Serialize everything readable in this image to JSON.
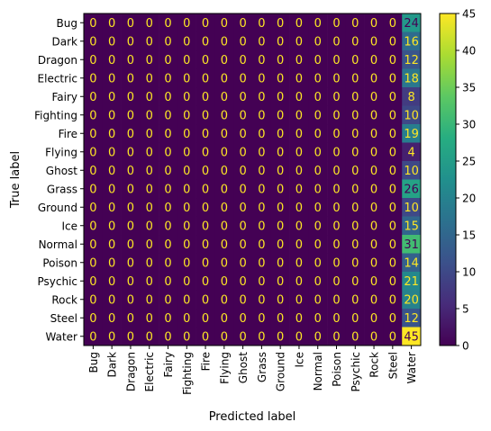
{
  "chart_data": {
    "type": "heatmap",
    "title": "",
    "xlabel": "Predicted label",
    "ylabel": "True label",
    "x_categories": [
      "Bug",
      "Dark",
      "Dragon",
      "Electric",
      "Fairy",
      "Fighting",
      "Fire",
      "Flying",
      "Ghost",
      "Grass",
      "Ground",
      "Ice",
      "Normal",
      "Poison",
      "Psychic",
      "Rock",
      "Steel",
      "Water"
    ],
    "y_categories": [
      "Bug",
      "Dark",
      "Dragon",
      "Electric",
      "Fairy",
      "Fighting",
      "Fire",
      "Flying",
      "Ghost",
      "Grass",
      "Ground",
      "Ice",
      "Normal",
      "Poison",
      "Psychic",
      "Rock",
      "Steel",
      "Water"
    ],
    "matrix": [
      [
        0,
        0,
        0,
        0,
        0,
        0,
        0,
        0,
        0,
        0,
        0,
        0,
        0,
        0,
        0,
        0,
        0,
        24
      ],
      [
        0,
        0,
        0,
        0,
        0,
        0,
        0,
        0,
        0,
        0,
        0,
        0,
        0,
        0,
        0,
        0,
        0,
        16
      ],
      [
        0,
        0,
        0,
        0,
        0,
        0,
        0,
        0,
        0,
        0,
        0,
        0,
        0,
        0,
        0,
        0,
        0,
        12
      ],
      [
        0,
        0,
        0,
        0,
        0,
        0,
        0,
        0,
        0,
        0,
        0,
        0,
        0,
        0,
        0,
        0,
        0,
        18
      ],
      [
        0,
        0,
        0,
        0,
        0,
        0,
        0,
        0,
        0,
        0,
        0,
        0,
        0,
        0,
        0,
        0,
        0,
        8
      ],
      [
        0,
        0,
        0,
        0,
        0,
        0,
        0,
        0,
        0,
        0,
        0,
        0,
        0,
        0,
        0,
        0,
        0,
        10
      ],
      [
        0,
        0,
        0,
        0,
        0,
        0,
        0,
        0,
        0,
        0,
        0,
        0,
        0,
        0,
        0,
        0,
        0,
        19
      ],
      [
        0,
        0,
        0,
        0,
        0,
        0,
        0,
        0,
        0,
        0,
        0,
        0,
        0,
        0,
        0,
        0,
        0,
        4
      ],
      [
        0,
        0,
        0,
        0,
        0,
        0,
        0,
        0,
        0,
        0,
        0,
        0,
        0,
        0,
        0,
        0,
        0,
        10
      ],
      [
        0,
        0,
        0,
        0,
        0,
        0,
        0,
        0,
        0,
        0,
        0,
        0,
        0,
        0,
        0,
        0,
        0,
        26
      ],
      [
        0,
        0,
        0,
        0,
        0,
        0,
        0,
        0,
        0,
        0,
        0,
        0,
        0,
        0,
        0,
        0,
        0,
        10
      ],
      [
        0,
        0,
        0,
        0,
        0,
        0,
        0,
        0,
        0,
        0,
        0,
        0,
        0,
        0,
        0,
        0,
        0,
        15
      ],
      [
        0,
        0,
        0,
        0,
        0,
        0,
        0,
        0,
        0,
        0,
        0,
        0,
        0,
        0,
        0,
        0,
        0,
        31
      ],
      [
        0,
        0,
        0,
        0,
        0,
        0,
        0,
        0,
        0,
        0,
        0,
        0,
        0,
        0,
        0,
        0,
        0,
        14
      ],
      [
        0,
        0,
        0,
        0,
        0,
        0,
        0,
        0,
        0,
        0,
        0,
        0,
        0,
        0,
        0,
        0,
        0,
        21
      ],
      [
        0,
        0,
        0,
        0,
        0,
        0,
        0,
        0,
        0,
        0,
        0,
        0,
        0,
        0,
        0,
        0,
        0,
        20
      ],
      [
        0,
        0,
        0,
        0,
        0,
        0,
        0,
        0,
        0,
        0,
        0,
        0,
        0,
        0,
        0,
        0,
        0,
        12
      ],
      [
        0,
        0,
        0,
        0,
        0,
        0,
        0,
        0,
        0,
        0,
        0,
        0,
        0,
        0,
        0,
        0,
        0,
        45
      ]
    ],
    "colormap": "viridis",
    "vmin": 0,
    "vmax": 45,
    "colorbar_ticks": [
      0,
      5,
      10,
      15,
      20,
      25,
      30,
      35,
      40,
      45
    ],
    "cell_text_colors": {
      "low": "#fde725",
      "high": "#440154"
    },
    "grid": false,
    "colorbar": "right"
  }
}
